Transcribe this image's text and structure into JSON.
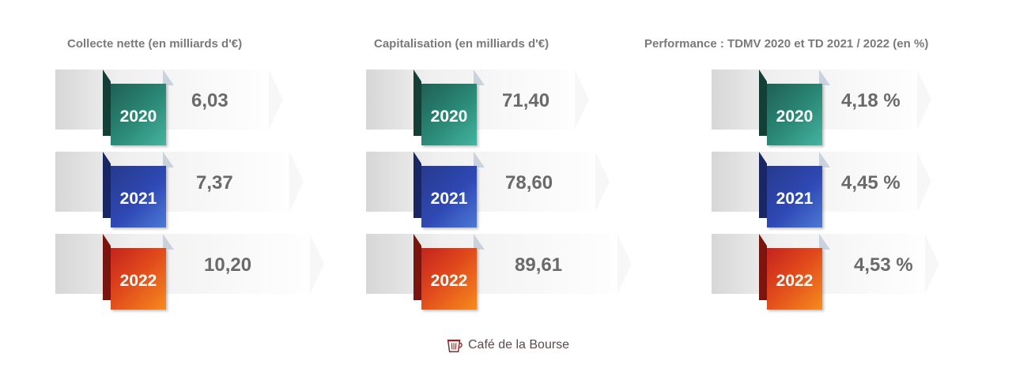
{
  "chart_data": [
    {
      "type": "table",
      "title": "Collecte nette (en milliards d'€)",
      "categories": [
        "2020",
        "2021",
        "2022"
      ],
      "values": [
        6.03,
        7.37,
        10.2
      ],
      "labels": [
        "6,03",
        "7,37",
        "10,20"
      ]
    },
    {
      "type": "table",
      "title": "Capitalisation (en milliards d'€)",
      "categories": [
        "2020",
        "2021",
        "2022"
      ],
      "values": [
        71.4,
        78.6,
        89.61
      ],
      "labels": [
        "71,40",
        "78,60",
        "89,61"
      ]
    },
    {
      "type": "table",
      "title": "Performance : TDMV 2020 et TD 2021 / 2022 (en %)",
      "categories": [
        "2020",
        "2021",
        "2022"
      ],
      "values": [
        4.18,
        4.45,
        4.53
      ],
      "labels": [
        "4,18 %",
        "4,45 %",
        "4,53 %"
      ]
    }
  ],
  "colors": {
    "2020": "#2b8b78",
    "2021": "#2f49b5",
    "2022": "#e0491b"
  },
  "footer": {
    "brand": "Café de la Bourse",
    "icon": "coffee-cup-icon"
  }
}
